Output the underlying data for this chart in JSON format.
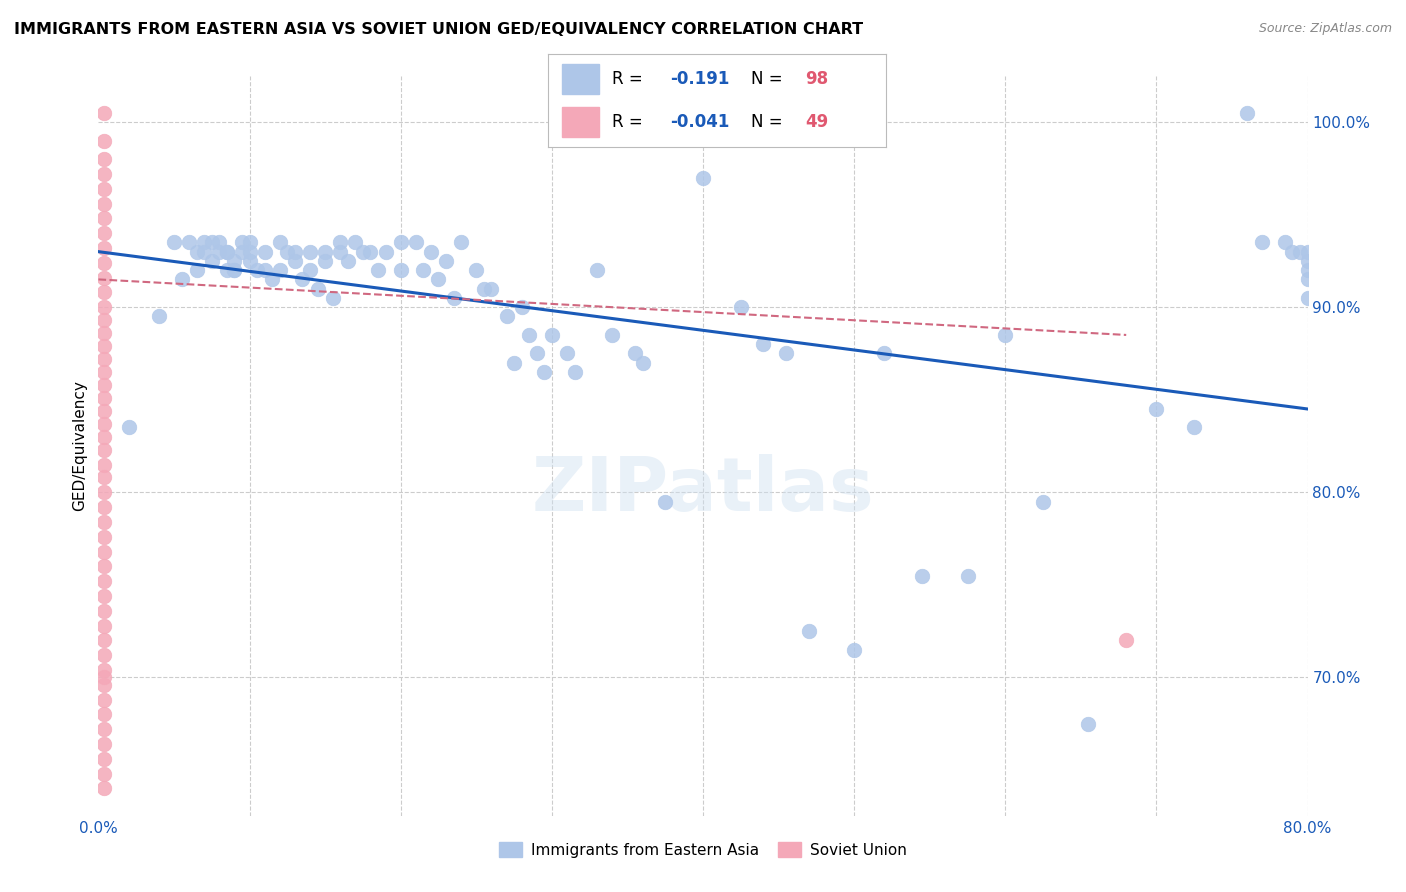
{
  "title": "IMMIGRANTS FROM EASTERN ASIA VS SOVIET UNION GED/EQUIVALENCY CORRELATION CHART",
  "source": "Source: ZipAtlas.com",
  "ylabel": "GED/Equivalency",
  "xlim": [
    0.0,
    0.8
  ],
  "ylim": [
    0.625,
    1.025
  ],
  "x_ticks": [
    0.0,
    0.1,
    0.2,
    0.3,
    0.4,
    0.5,
    0.6,
    0.7,
    0.8
  ],
  "x_tick_labels": [
    "0.0%",
    "",
    "",
    "",
    "",
    "",
    "",
    "",
    "80.0%"
  ],
  "y_ticks": [
    0.7,
    0.8,
    0.9,
    1.0
  ],
  "y_tick_labels": [
    "70.0%",
    "80.0%",
    "90.0%",
    "100.0%"
  ],
  "blue_color": "#aec6e8",
  "pink_color": "#f4a8b8",
  "blue_line_color": "#1a5ab8",
  "pink_line_color": "#d06880",
  "grid_color": "#cccccc",
  "watermark": "ZIPatlas",
  "blue_scatter_x": [
    0.02,
    0.04,
    0.05,
    0.055,
    0.06,
    0.065,
    0.065,
    0.07,
    0.07,
    0.075,
    0.075,
    0.08,
    0.08,
    0.085,
    0.085,
    0.085,
    0.09,
    0.09,
    0.09,
    0.095,
    0.095,
    0.1,
    0.1,
    0.1,
    0.105,
    0.11,
    0.11,
    0.115,
    0.12,
    0.12,
    0.125,
    0.13,
    0.13,
    0.135,
    0.14,
    0.14,
    0.145,
    0.15,
    0.15,
    0.155,
    0.16,
    0.16,
    0.165,
    0.17,
    0.175,
    0.18,
    0.185,
    0.19,
    0.2,
    0.2,
    0.21,
    0.215,
    0.22,
    0.225,
    0.23,
    0.235,
    0.24,
    0.25,
    0.255,
    0.26,
    0.27,
    0.275,
    0.28,
    0.285,
    0.29,
    0.295,
    0.3,
    0.31,
    0.315,
    0.33,
    0.34,
    0.355,
    0.36,
    0.375,
    0.4,
    0.425,
    0.44,
    0.455,
    0.47,
    0.5,
    0.52,
    0.545,
    0.575,
    0.6,
    0.625,
    0.655,
    0.7,
    0.725,
    0.76,
    0.77,
    0.785,
    0.79,
    0.795,
    0.8,
    0.8,
    0.8,
    0.8,
    0.8
  ],
  "blue_scatter_y": [
    0.835,
    0.895,
    0.935,
    0.915,
    0.935,
    0.93,
    0.92,
    0.935,
    0.93,
    0.935,
    0.925,
    0.935,
    0.93,
    0.93,
    0.93,
    0.92,
    0.92,
    0.925,
    0.92,
    0.935,
    0.93,
    0.935,
    0.925,
    0.93,
    0.92,
    0.93,
    0.92,
    0.915,
    0.935,
    0.92,
    0.93,
    0.93,
    0.925,
    0.915,
    0.93,
    0.92,
    0.91,
    0.93,
    0.925,
    0.905,
    0.935,
    0.93,
    0.925,
    0.935,
    0.93,
    0.93,
    0.92,
    0.93,
    0.935,
    0.92,
    0.935,
    0.92,
    0.93,
    0.915,
    0.925,
    0.905,
    0.935,
    0.92,
    0.91,
    0.91,
    0.895,
    0.87,
    0.9,
    0.885,
    0.875,
    0.865,
    0.885,
    0.875,
    0.865,
    0.92,
    0.885,
    0.875,
    0.87,
    0.795,
    0.97,
    0.9,
    0.88,
    0.875,
    0.725,
    0.715,
    0.875,
    0.755,
    0.755,
    0.885,
    0.795,
    0.675,
    0.845,
    0.835,
    1.005,
    0.935,
    0.935,
    0.93,
    0.93,
    0.925,
    0.93,
    0.92,
    0.915,
    0.905
  ],
  "pink_scatter_x": [
    0.004,
    0.004,
    0.004,
    0.004,
    0.004,
    0.004,
    0.004,
    0.004,
    0.004,
    0.004,
    0.004,
    0.004,
    0.004,
    0.004,
    0.004,
    0.004,
    0.004,
    0.004,
    0.004,
    0.004,
    0.004,
    0.004,
    0.004,
    0.004,
    0.004,
    0.004,
    0.004,
    0.004,
    0.004,
    0.004,
    0.004,
    0.004,
    0.004,
    0.004,
    0.004,
    0.004,
    0.004,
    0.004,
    0.004,
    0.004,
    0.004,
    0.004,
    0.004,
    0.004,
    0.004,
    0.004,
    0.004,
    0.004,
    0.68
  ],
  "pink_scatter_y": [
    1.005,
    0.99,
    0.98,
    0.972,
    0.964,
    0.956,
    0.948,
    0.94,
    0.932,
    0.924,
    0.916,
    0.908,
    0.9,
    0.893,
    0.886,
    0.879,
    0.872,
    0.865,
    0.858,
    0.851,
    0.844,
    0.837,
    0.83,
    0.823,
    0.815,
    0.808,
    0.8,
    0.792,
    0.784,
    0.776,
    0.768,
    0.76,
    0.752,
    0.744,
    0.736,
    0.728,
    0.72,
    0.712,
    0.704,
    0.696,
    0.688,
    0.68,
    0.672,
    0.664,
    0.656,
    0.648,
    0.64,
    0.7,
    0.72
  ],
  "blue_trendline_x": [
    0.0,
    0.8
  ],
  "blue_trendline_y": [
    0.93,
    0.845
  ],
  "pink_trendline_x": [
    0.0,
    0.68
  ],
  "pink_trendline_y": [
    0.915,
    0.885
  ]
}
